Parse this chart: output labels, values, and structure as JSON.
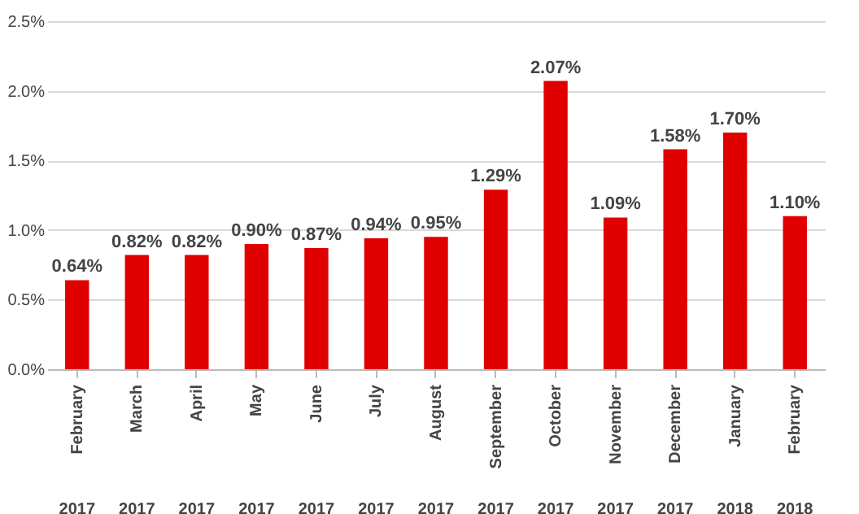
{
  "chart_data": {
    "type": "bar",
    "categories": [
      "February 2017",
      "March 2017",
      "April 2017",
      "May 2017",
      "June 2017",
      "July 2017",
      "August 2017",
      "September 2017",
      "October 2017",
      "November 2017",
      "December 2017",
      "January 2018",
      "February 2018"
    ],
    "values": [
      0.64,
      0.82,
      0.82,
      0.9,
      0.87,
      0.94,
      0.95,
      1.29,
      2.07,
      1.09,
      1.58,
      1.7,
      1.1
    ],
    "color": "#e00000",
    "ylim": [
      0,
      2.5
    ],
    "yticks": [
      {
        "value": 0,
        "label": "0.0%"
      },
      {
        "value": 0.5,
        "label": "0.5%"
      },
      {
        "value": 1.0,
        "label": "1.0%"
      },
      {
        "value": 1.5,
        "label": "1.5%"
      },
      {
        "value": 2.0,
        "label": "2.0%"
      },
      {
        "value": 2.5,
        "label": "2.5%"
      }
    ],
    "value_labels": [
      "0.64%",
      "0.82%",
      "0.82%",
      "0.90%",
      "0.87%",
      "0.94%",
      "0.95%",
      "1.29%",
      "2.07%",
      "1.09%",
      "1.58%",
      "1.70%",
      "1.10%"
    ],
    "grid": "y"
  }
}
